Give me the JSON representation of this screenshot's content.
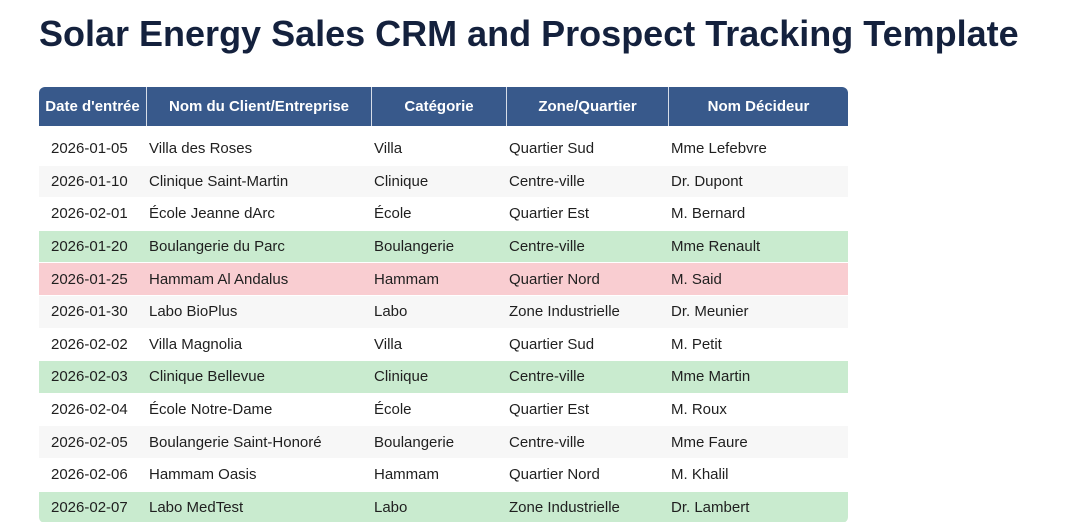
{
  "page": {
    "title": "Solar Energy Sales CRM and Prospect Tracking Template"
  },
  "colors": {
    "header_bg": "#38598b",
    "header_text": "#ffffff",
    "title_text": "#14213d",
    "row_green": "#c9ebcf",
    "row_red": "#f9cdd1",
    "row_gray": "#f7f7f7"
  },
  "table": {
    "columns": [
      "Date d'entrée",
      "Nom du Client/Entreprise",
      "Catégorie",
      "Zone/Quartier",
      "Nom Décideur"
    ],
    "rows": [
      {
        "date": "2026-01-05",
        "client": "Villa des Roses",
        "category": "Villa",
        "zone": "Quartier Sud",
        "decider": "Mme Lefebvre",
        "status": "white"
      },
      {
        "date": "2026-01-10",
        "client": "Clinique Saint-Martin",
        "category": "Clinique",
        "zone": "Centre-ville",
        "decider": "Dr. Dupont",
        "status": "gray"
      },
      {
        "date": "2026-02-01",
        "client": "École Jeanne dArc",
        "category": "École",
        "zone": "Quartier Est",
        "decider": "M. Bernard",
        "status": "white"
      },
      {
        "date": "2026-01-20",
        "client": "Boulangerie du Parc",
        "category": "Boulangerie",
        "zone": "Centre-ville",
        "decider": "Mme Renault",
        "status": "green"
      },
      {
        "date": "2026-01-25",
        "client": "Hammam Al Andalus",
        "category": "Hammam",
        "zone": "Quartier Nord",
        "decider": "M. Said",
        "status": "red"
      },
      {
        "date": "2026-01-30",
        "client": "Labo BioPlus",
        "category": "Labo",
        "zone": "Zone Industrielle",
        "decider": "Dr. Meunier",
        "status": "gray"
      },
      {
        "date": "2026-02-02",
        "client": "Villa Magnolia",
        "category": "Villa",
        "zone": "Quartier Sud",
        "decider": "M. Petit",
        "status": "white"
      },
      {
        "date": "2026-02-03",
        "client": "Clinique Bellevue",
        "category": "Clinique",
        "zone": "Centre-ville",
        "decider": "Mme Martin",
        "status": "green"
      },
      {
        "date": "2026-02-04",
        "client": "École Notre-Dame",
        "category": "École",
        "zone": "Quartier Est",
        "decider": "M. Roux",
        "status": "white"
      },
      {
        "date": "2026-02-05",
        "client": "Boulangerie Saint-Honoré",
        "category": "Boulangerie",
        "zone": "Centre-ville",
        "decider": "Mme Faure",
        "status": "gray"
      },
      {
        "date": "2026-02-06",
        "client": "Hammam Oasis",
        "category": "Hammam",
        "zone": "Quartier Nord",
        "decider": "M. Khalil",
        "status": "white"
      },
      {
        "date": "2026-02-07",
        "client": "Labo MedTest",
        "category": "Labo",
        "zone": "Zone Industrielle",
        "decider": "Dr. Lambert",
        "status": "green"
      }
    ]
  }
}
